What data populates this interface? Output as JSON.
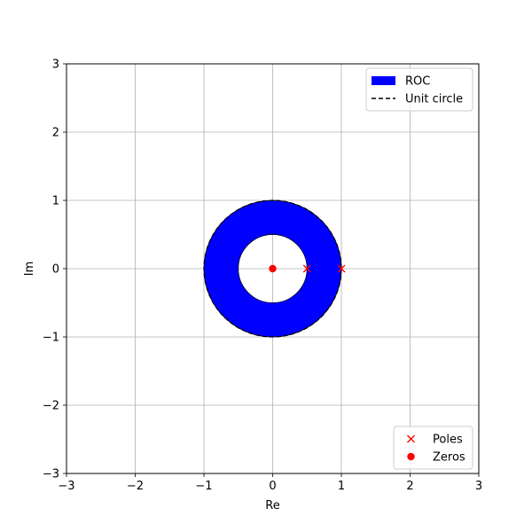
{
  "chart_data": {
    "type": "scatter",
    "title": "",
    "xlabel": "Re",
    "ylabel": "Im",
    "xlim": [
      -3,
      3
    ],
    "ylim": [
      -3,
      3
    ],
    "grid": true,
    "xticks": [
      -3,
      -2,
      -1,
      0,
      1,
      2,
      3
    ],
    "yticks": [
      -3,
      -2,
      -1,
      0,
      1,
      2,
      3
    ],
    "xtick_labels": [
      "−3",
      "−2",
      "−1",
      "0",
      "1",
      "2",
      "3"
    ],
    "ytick_labels": [
      "−3",
      "−2",
      "−1",
      "0",
      "1",
      "2",
      "3"
    ],
    "roc": {
      "inner_radius": 0.5,
      "outer_radius": 1.0,
      "color": "#0000ff"
    },
    "unit_circle": {
      "radius": 1.0
    },
    "series": [
      {
        "name": "Poles",
        "marker": "x",
        "color": "#ff0000",
        "points": [
          [
            0.5,
            0
          ],
          [
            1,
            0
          ]
        ]
      },
      {
        "name": "Zeros",
        "marker": "o",
        "color": "#ff0000",
        "points": [
          [
            0,
            0
          ]
        ]
      }
    ],
    "legend_top": {
      "placement": "top-right",
      "entries": [
        {
          "label": "ROC",
          "kind": "patch",
          "color": "#0000ff"
        },
        {
          "label": "Unit circle",
          "kind": "dashed-line",
          "color": "#000000"
        }
      ]
    },
    "legend_bottom": {
      "placement": "bottom-right",
      "entries": [
        {
          "label": "Poles",
          "kind": "x-marker",
          "color": "#ff0000"
        },
        {
          "label": "Zeros",
          "kind": "o-marker",
          "color": "#ff0000"
        }
      ]
    }
  }
}
